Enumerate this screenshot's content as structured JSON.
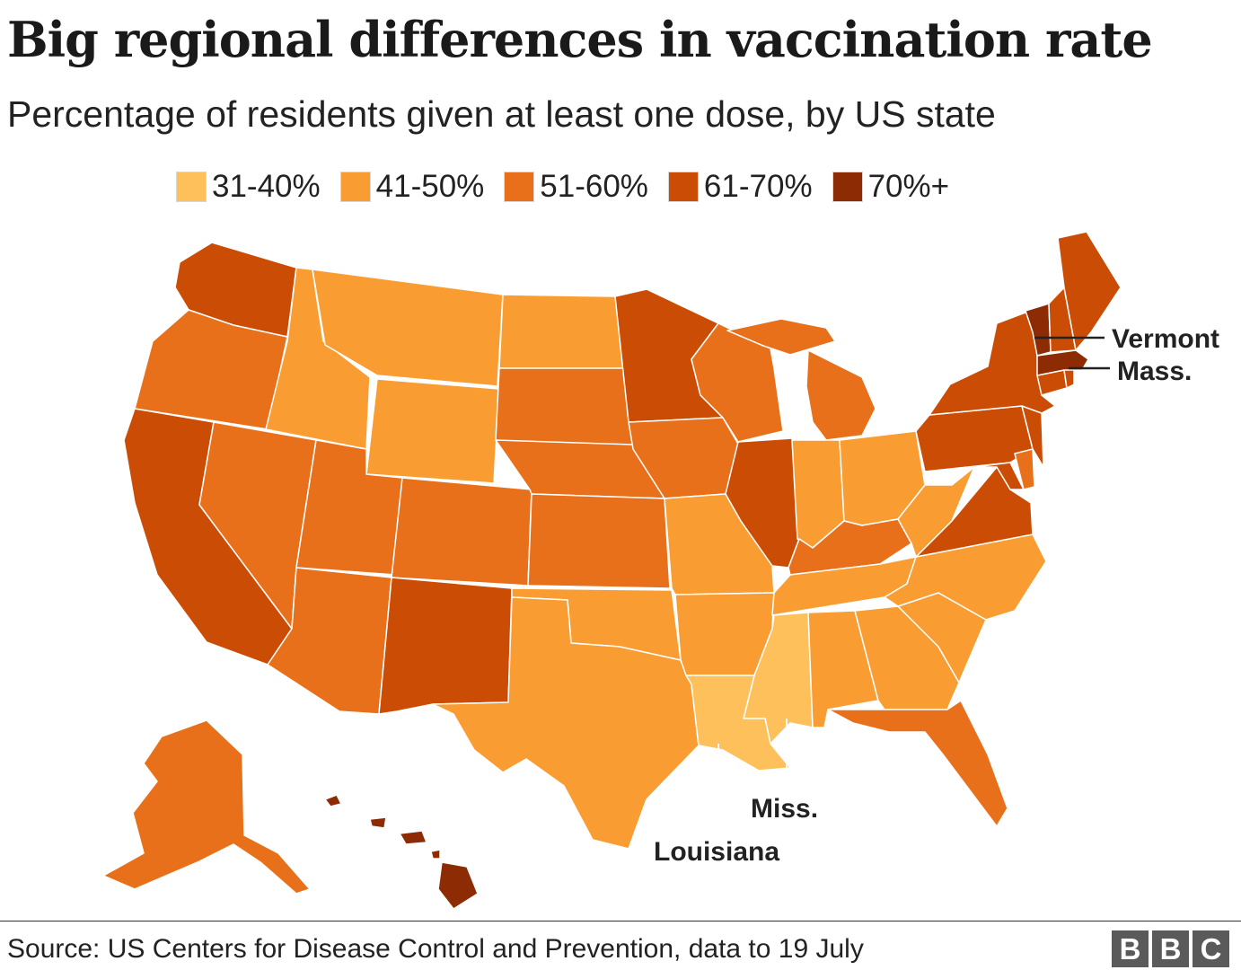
{
  "title": "Big regional differences in vaccination rate",
  "subtitle": "Percentage of residents given at least one dose, by US state",
  "legend": [
    {
      "label": "31-40%",
      "color": "#fec05a"
    },
    {
      "label": "41-50%",
      "color": "#f99d32"
    },
    {
      "label": "51-60%",
      "color": "#e8701b"
    },
    {
      "label": "61-70%",
      "color": "#cb4c04"
    },
    {
      "label": "70%+",
      "color": "#8c2b04"
    }
  ],
  "annotations": {
    "vermont": "Vermont",
    "mass": "Mass.",
    "miss": "Miss.",
    "louisiana": "Louisiana"
  },
  "source": "Source: US Centers for Disease Control and Prevention, data to 19 July",
  "logo": [
    "B",
    "B",
    "C"
  ]
}
